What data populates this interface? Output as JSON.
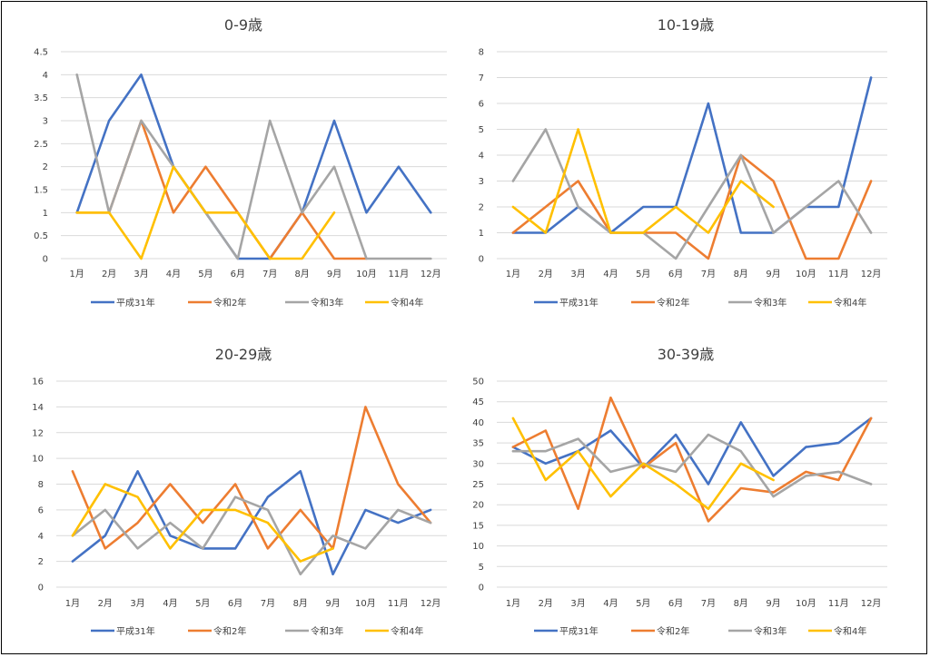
{
  "months": [
    "1月",
    "2月",
    "3月",
    "4月",
    "5月",
    "6月",
    "7月",
    "8月",
    "9月",
    "10月",
    "11月",
    "12月"
  ],
  "series_meta": [
    {
      "name": "平成31年",
      "color": "#4472c4"
    },
    {
      "name": "令和2年",
      "color": "#ed7d31"
    },
    {
      "name": "令和3年",
      "color": "#a5a5a5"
    },
    {
      "name": "令和4年",
      "color": "#ffc000"
    }
  ],
  "chart_data": [
    {
      "type": "line",
      "title": "0-9歳",
      "categories": [
        "1月",
        "2月",
        "3月",
        "4月",
        "5月",
        "6月",
        "7月",
        "8月",
        "9月",
        "10月",
        "11月",
        "12月"
      ],
      "ylim": [
        0,
        4.5
      ],
      "yticks": [
        "0",
        "0.5",
        "1",
        "1.5",
        "2",
        "2.5",
        "3",
        "3.5",
        "4",
        "4.5"
      ],
      "grid": true,
      "legend": "bottom",
      "series": [
        {
          "name": "平成31年",
          "values": [
            1,
            3,
            4,
            2,
            1,
            0,
            0,
            1,
            3,
            1,
            2,
            1
          ]
        },
        {
          "name": "令和2年",
          "values": [
            1,
            1,
            3,
            1,
            2,
            1,
            0,
            1,
            0,
            0,
            null,
            null
          ]
        },
        {
          "name": "令和3年",
          "values": [
            4,
            1,
            3,
            2,
            1,
            0,
            3,
            1,
            2,
            0,
            0,
            0
          ]
        },
        {
          "name": "令和4年",
          "values": [
            1,
            1,
            0,
            2,
            1,
            1,
            0,
            0,
            1,
            null,
            null,
            null
          ]
        }
      ]
    },
    {
      "type": "line",
      "title": "10-19歳",
      "categories": [
        "1月",
        "2月",
        "3月",
        "4月",
        "5月",
        "6月",
        "7月",
        "8月",
        "9月",
        "10月",
        "11月",
        "12月"
      ],
      "ylim": [
        0,
        8
      ],
      "yticks": [
        "0",
        "1",
        "2",
        "3",
        "4",
        "5",
        "6",
        "7",
        "8"
      ],
      "grid": true,
      "legend": "bottom",
      "series": [
        {
          "name": "平成31年",
          "values": [
            1,
            1,
            2,
            1,
            2,
            2,
            6,
            1,
            1,
            2,
            2,
            7
          ]
        },
        {
          "name": "令和2年",
          "values": [
            1,
            2,
            3,
            1,
            1,
            1,
            0,
            4,
            3,
            0,
            0,
            3
          ]
        },
        {
          "name": "令和3年",
          "values": [
            3,
            5,
            2,
            1,
            1,
            0,
            2,
            4,
            1,
            2,
            3,
            1
          ]
        },
        {
          "name": "令和4年",
          "values": [
            2,
            1,
            5,
            1,
            1,
            2,
            1,
            3,
            2,
            null,
            null,
            null
          ]
        }
      ]
    },
    {
      "type": "line",
      "title": "20-29歳",
      "categories": [
        "1月",
        "2月",
        "3月",
        "4月",
        "5月",
        "6月",
        "7月",
        "8月",
        "9月",
        "10月",
        "11月",
        "12月"
      ],
      "ylim": [
        0,
        16
      ],
      "yticks": [
        "0",
        "2",
        "4",
        "6",
        "8",
        "10",
        "12",
        "14",
        "16"
      ],
      "grid": true,
      "legend": "bottom",
      "series": [
        {
          "name": "平成31年",
          "values": [
            2,
            4,
            9,
            4,
            3,
            3,
            7,
            9,
            1,
            6,
            5,
            6
          ]
        },
        {
          "name": "令和2年",
          "values": [
            9,
            3,
            5,
            8,
            5,
            8,
            3,
            6,
            3,
            14,
            8,
            5
          ]
        },
        {
          "name": "令和3年",
          "values": [
            4,
            6,
            3,
            5,
            3,
            7,
            6,
            1,
            4,
            3,
            6,
            5
          ]
        },
        {
          "name": "令和4年",
          "values": [
            4,
            8,
            7,
            3,
            6,
            6,
            5,
            2,
            3,
            null,
            null,
            null
          ]
        }
      ]
    },
    {
      "type": "line",
      "title": "30-39歳",
      "categories": [
        "1月",
        "2月",
        "3月",
        "4月",
        "5月",
        "6月",
        "7月",
        "8月",
        "9月",
        "10月",
        "11月",
        "12月"
      ],
      "ylim": [
        0,
        50
      ],
      "yticks": [
        "0",
        "5",
        "10",
        "15",
        "20",
        "25",
        "30",
        "35",
        "40",
        "45",
        "50"
      ],
      "grid": true,
      "legend": "bottom",
      "series": [
        {
          "name": "平成31年",
          "values": [
            34,
            30,
            33,
            38,
            29,
            37,
            25,
            40,
            27,
            34,
            35,
            41
          ]
        },
        {
          "name": "令和2年",
          "values": [
            34,
            38,
            19,
            46,
            29,
            35,
            16,
            24,
            23,
            28,
            26,
            41
          ]
        },
        {
          "name": "令和3年",
          "values": [
            33,
            33,
            36,
            28,
            30,
            28,
            37,
            33,
            22,
            27,
            28,
            25
          ]
        },
        {
          "name": "令和4年",
          "values": [
            41,
            26,
            33,
            22,
            30,
            25,
            19,
            30,
            26,
            null,
            null,
            null
          ]
        }
      ]
    }
  ]
}
